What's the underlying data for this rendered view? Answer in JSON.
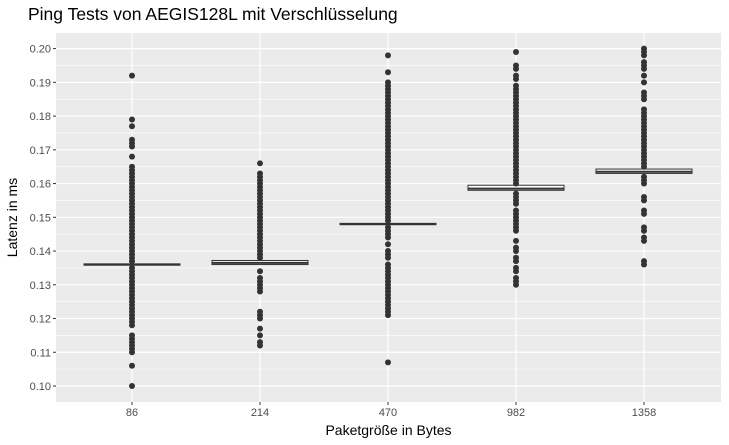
{
  "chart_data": {
    "type": "boxplot",
    "title": "Ping Tests von AEGIS128L mit Verschlüsselung",
    "xlabel": "Paketgröße in Bytes",
    "ylabel": "Latenz in ms",
    "ylim": [
      0.095,
      0.203
    ],
    "yticks": [
      "0.10",
      "0.11",
      "0.12",
      "0.13",
      "0.14",
      "0.15",
      "0.16",
      "0.17",
      "0.18",
      "0.19",
      "0.20"
    ],
    "categories": [
      "86",
      "214",
      "470",
      "982",
      "1358"
    ],
    "boxes": [
      {
        "category": "86",
        "q1": 0.1358,
        "median": 0.136,
        "q3": 0.1362,
        "whisker_low": 0.1358,
        "whisker_high": 0.1362
      },
      {
        "category": "214",
        "q1": 0.136,
        "median": 0.1365,
        "q3": 0.1372,
        "whisker_low": 0.136,
        "whisker_high": 0.1372
      },
      {
        "category": "470",
        "q1": 0.1478,
        "median": 0.148,
        "q3": 0.1482,
        "whisker_low": 0.1478,
        "whisker_high": 0.1482
      },
      {
        "category": "982",
        "q1": 0.158,
        "median": 0.1585,
        "q3": 0.1595,
        "whisker_low": 0.158,
        "whisker_high": 0.1595
      },
      {
        "category": "1358",
        "q1": 0.163,
        "median": 0.1635,
        "q3": 0.1643,
        "whisker_low": 0.163,
        "whisker_high": 0.1643
      }
    ],
    "outliers": [
      [
        0.192,
        0.179,
        0.177,
        0.173,
        0.172,
        0.171,
        0.168,
        0.165,
        0.164,
        0.163,
        0.162,
        0.161,
        0.16,
        0.159,
        0.158,
        0.157,
        0.156,
        0.155,
        0.154,
        0.153,
        0.152,
        0.151,
        0.15,
        0.149,
        0.148,
        0.147,
        0.146,
        0.145,
        0.144,
        0.143,
        0.142,
        0.141,
        0.14,
        0.139,
        0.138,
        0.137,
        0.135,
        0.134,
        0.133,
        0.132,
        0.131,
        0.13,
        0.129,
        0.128,
        0.127,
        0.126,
        0.125,
        0.124,
        0.123,
        0.122,
        0.121,
        0.12,
        0.119,
        0.118,
        0.115,
        0.114,
        0.113,
        0.112,
        0.111,
        0.11,
        0.106,
        0.1
      ],
      [
        0.166,
        0.163,
        0.162,
        0.161,
        0.16,
        0.159,
        0.158,
        0.157,
        0.156,
        0.155,
        0.154,
        0.153,
        0.152,
        0.151,
        0.15,
        0.149,
        0.148,
        0.147,
        0.146,
        0.145,
        0.144,
        0.143,
        0.142,
        0.141,
        0.14,
        0.139,
        0.138,
        0.134,
        0.132,
        0.131,
        0.13,
        0.129,
        0.128,
        0.122,
        0.121,
        0.12,
        0.117,
        0.115,
        0.113,
        0.112
      ],
      [
        0.198,
        0.193,
        0.19,
        0.189,
        0.188,
        0.187,
        0.186,
        0.185,
        0.184,
        0.183,
        0.182,
        0.181,
        0.18,
        0.179,
        0.178,
        0.177,
        0.176,
        0.175,
        0.174,
        0.173,
        0.172,
        0.171,
        0.17,
        0.169,
        0.168,
        0.167,
        0.166,
        0.165,
        0.164,
        0.163,
        0.162,
        0.161,
        0.16,
        0.159,
        0.158,
        0.157,
        0.156,
        0.155,
        0.154,
        0.153,
        0.152,
        0.151,
        0.15,
        0.149,
        0.147,
        0.146,
        0.145,
        0.144,
        0.142,
        0.14,
        0.139,
        0.138,
        0.136,
        0.135,
        0.134,
        0.133,
        0.132,
        0.131,
        0.13,
        0.129,
        0.128,
        0.127,
        0.126,
        0.125,
        0.124,
        0.123,
        0.122,
        0.121,
        0.107
      ],
      [
        0.199,
        0.195,
        0.194,
        0.192,
        0.191,
        0.189,
        0.188,
        0.187,
        0.186,
        0.185,
        0.184,
        0.183,
        0.182,
        0.181,
        0.18,
        0.179,
        0.178,
        0.177,
        0.176,
        0.175,
        0.174,
        0.173,
        0.172,
        0.171,
        0.17,
        0.169,
        0.168,
        0.167,
        0.166,
        0.165,
        0.164,
        0.163,
        0.162,
        0.161,
        0.16,
        0.157,
        0.156,
        0.155,
        0.154,
        0.152,
        0.151,
        0.15,
        0.149,
        0.148,
        0.147,
        0.146,
        0.143,
        0.141,
        0.14,
        0.138,
        0.137,
        0.135,
        0.134,
        0.132,
        0.131,
        0.13
      ],
      [
        0.2,
        0.199,
        0.198,
        0.196,
        0.195,
        0.194,
        0.192,
        0.19,
        0.187,
        0.186,
        0.185,
        0.182,
        0.181,
        0.18,
        0.179,
        0.178,
        0.177,
        0.176,
        0.175,
        0.174,
        0.173,
        0.172,
        0.171,
        0.17,
        0.169,
        0.168,
        0.167,
        0.166,
        0.165,
        0.162,
        0.161,
        0.16,
        0.156,
        0.155,
        0.152,
        0.151,
        0.147,
        0.146,
        0.144,
        0.143,
        0.137,
        0.136
      ]
    ],
    "colors": {
      "panel": "#ebebeb",
      "grid": "#ffffff",
      "point": "#333333",
      "box_fill": "#ffffff",
      "box_line": "#333333"
    },
    "grid": true,
    "legend": "none"
  }
}
